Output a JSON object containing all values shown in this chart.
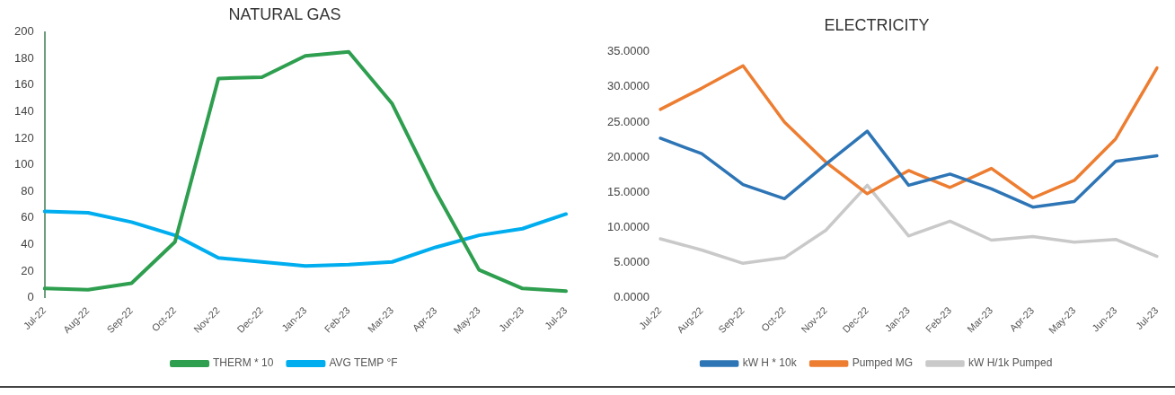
{
  "chart_data": [
    {
      "type": "line",
      "title": "NATURAL GAS",
      "categories": [
        "Jul-22",
        "Aug-22",
        "Sep-22",
        "Oct-22",
        "Nov-22",
        "Dec-22",
        "Jan-23",
        "Feb-23",
        "Mar-23",
        "Apr-23",
        "May-23",
        "Jun-23",
        "Jul-23"
      ],
      "series": [
        {
          "name": "THERM * 10",
          "color": "#2e9e4f",
          "values": [
            7,
            6,
            11,
            42,
            165,
            166,
            182,
            185,
            146,
            80,
            21,
            7,
            5
          ]
        },
        {
          "name": "AVG TEMP °F",
          "color": "#00aeef",
          "values": [
            65,
            64,
            57,
            47,
            30,
            27,
            24,
            25,
            27,
            38,
            47,
            52,
            63
          ]
        }
      ],
      "ylim": [
        0,
        200
      ],
      "yticks": [
        0,
        20,
        40,
        60,
        80,
        100,
        120,
        140,
        160,
        180,
        200
      ],
      "grid": false,
      "legend": "bottom",
      "marker": "none"
    },
    {
      "type": "line",
      "title": "ELECTRICITY",
      "categories": [
        "Jul-22",
        "Aug-22",
        "Sep-22",
        "Oct-22",
        "Nov-22",
        "Dec-22",
        "Jan-23",
        "Feb-23",
        "Mar-23",
        "Apr-23",
        "May-23",
        "Jun-23",
        "Jul-23"
      ],
      "series": [
        {
          "name": "kW H * 10k",
          "color": "#2e75b6",
          "values": [
            22.7,
            20.5,
            16.1,
            14.1,
            19,
            23.7,
            16,
            17.6,
            15.5,
            12.9,
            13.7,
            19.4,
            20.2
          ]
        },
        {
          "name": "Pumped MG",
          "color": "#ed7d31",
          "values": [
            26.8,
            29.8,
            33,
            25,
            19.3,
            14.8,
            18.1,
            15.7,
            18.4,
            14.2,
            16.7,
            22.6,
            32.7
          ]
        },
        {
          "name": "kW H/1k Pumped",
          "color": "#c9c9c9",
          "values": [
            8.4,
            6.8,
            4.9,
            5.7,
            9.6,
            16,
            8.8,
            10.9,
            8.2,
            8.7,
            7.9,
            8.3,
            5.9
          ]
        }
      ],
      "ylim": [
        0,
        35
      ],
      "yticks": [
        {
          "value": 0,
          "label": "0.0000"
        },
        {
          "value": 5,
          "label": "5.0000"
        },
        {
          "value": 10,
          "label": "10.0000"
        },
        {
          "value": 15,
          "label": "15.0000"
        },
        {
          "value": 20,
          "label": "20.0000"
        },
        {
          "value": 25,
          "label": "25.0000"
        },
        {
          "value": 30,
          "label": "30.0000"
        },
        {
          "value": 35,
          "label": "35.0000"
        }
      ],
      "grid": false,
      "legend": "bottom",
      "marker": "none"
    }
  ]
}
